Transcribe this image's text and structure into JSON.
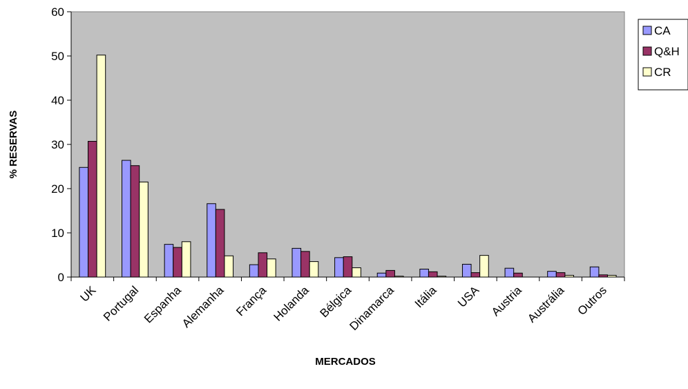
{
  "chart_data": {
    "type": "bar",
    "title": "",
    "xlabel": "MERCADOS",
    "ylabel": "% RESERVAS",
    "ylim": [
      0,
      60
    ],
    "yticks": [
      0,
      10,
      20,
      30,
      40,
      50,
      60
    ],
    "grid": false,
    "legend_position": "right",
    "plot_background": "#c0c0c0",
    "categories": [
      "UK",
      "Portugal",
      "Espanha",
      "Alemanha",
      "França",
      "Holanda",
      "Bélgica",
      "Dinamarca",
      "Itália",
      "USA",
      "Austria",
      "Austrália",
      "Outros"
    ],
    "series": [
      {
        "name": "CA",
        "color": "#9999ff",
        "values": [
          24.8,
          26.4,
          7.4,
          16.6,
          2.8,
          6.5,
          4.4,
          0.9,
          1.8,
          2.9,
          2.0,
          1.3,
          2.3
        ]
      },
      {
        "name": "Q&H",
        "color": "#993366",
        "values": [
          30.7,
          25.2,
          6.7,
          15.3,
          5.5,
          5.8,
          4.6,
          1.5,
          1.2,
          1.0,
          0.9,
          1.0,
          0.5
        ]
      },
      {
        "name": "CR",
        "color": "#ffffcc",
        "values": [
          50.2,
          21.5,
          8.0,
          4.8,
          4.1,
          3.5,
          2.1,
          0.2,
          0.2,
          4.9,
          0.0,
          0.4,
          0.4
        ]
      }
    ]
  }
}
